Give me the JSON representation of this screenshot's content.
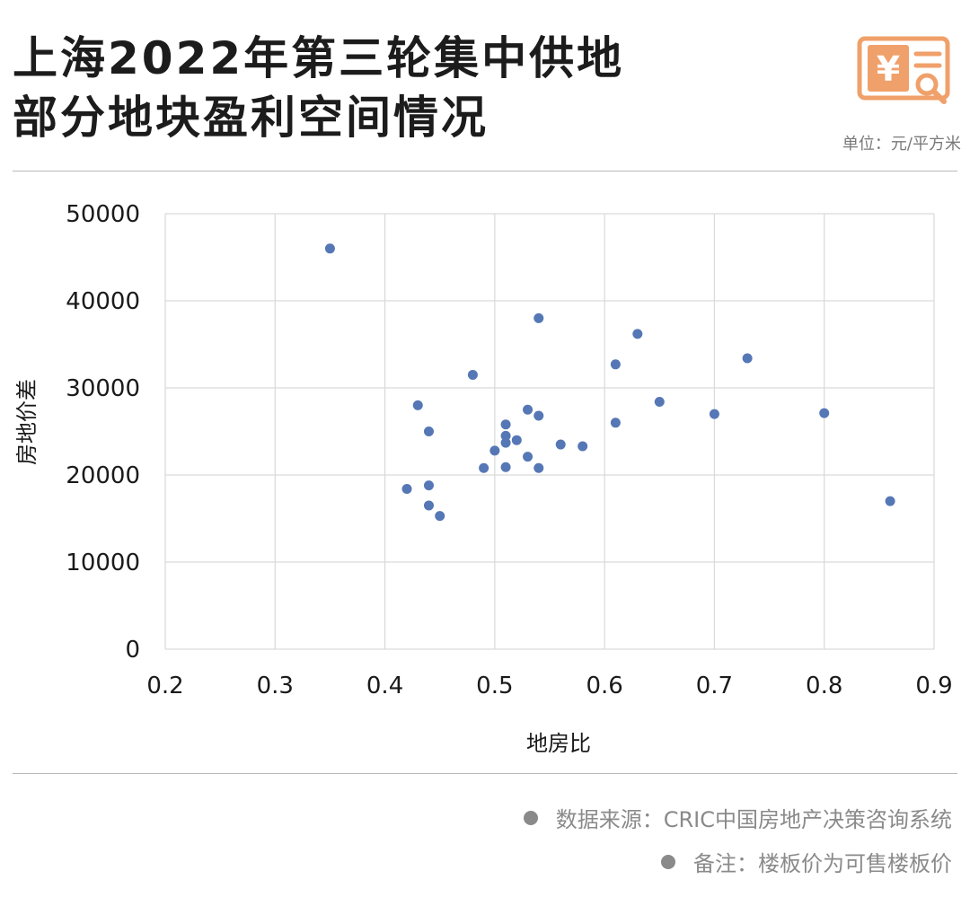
{
  "header": {
    "title_line1": "上海2022年第三轮集中供地",
    "title_line2": "部分地块盈利空间情况",
    "unit_label": "单位：元/平方米",
    "logo_icon": "yuan-receipt-search-icon",
    "logo_color": "#F0A06A"
  },
  "footer": {
    "source": "数据来源：CRIC中国房地产决策咨询系统",
    "note": "备注：楼板价为可售楼板价"
  },
  "chart_data": {
    "type": "scatter",
    "xlabel": "地房比",
    "ylabel": "房地价差",
    "xlim": [
      0.2,
      0.9
    ],
    "ylim": [
      0,
      50000
    ],
    "xticks": [
      "0.2",
      "0.3",
      "0.4",
      "0.5",
      "0.6",
      "0.7",
      "0.8",
      "0.9"
    ],
    "yticks": [
      "0",
      "10000",
      "20000",
      "30000",
      "40000",
      "50000"
    ],
    "grid": true,
    "marker_color": "#5577B5",
    "series": [
      {
        "points": [
          [
            0.35,
            46000
          ],
          [
            0.42,
            18400
          ],
          [
            0.43,
            28000
          ],
          [
            0.44,
            25000
          ],
          [
            0.44,
            18800
          ],
          [
            0.44,
            16500
          ],
          [
            0.45,
            15300
          ],
          [
            0.48,
            31500
          ],
          [
            0.49,
            20800
          ],
          [
            0.5,
            22800
          ],
          [
            0.51,
            25800
          ],
          [
            0.51,
            24500
          ],
          [
            0.51,
            23700
          ],
          [
            0.51,
            20900
          ],
          [
            0.52,
            24000
          ],
          [
            0.53,
            27500
          ],
          [
            0.53,
            22100
          ],
          [
            0.54,
            38000
          ],
          [
            0.54,
            26800
          ],
          [
            0.54,
            20800
          ],
          [
            0.56,
            23500
          ],
          [
            0.58,
            23300
          ],
          [
            0.61,
            32700
          ],
          [
            0.61,
            26000
          ],
          [
            0.63,
            36200
          ],
          [
            0.65,
            28400
          ],
          [
            0.7,
            27000
          ],
          [
            0.73,
            33400
          ],
          [
            0.8,
            27100
          ],
          [
            0.86,
            17000
          ]
        ]
      }
    ]
  }
}
